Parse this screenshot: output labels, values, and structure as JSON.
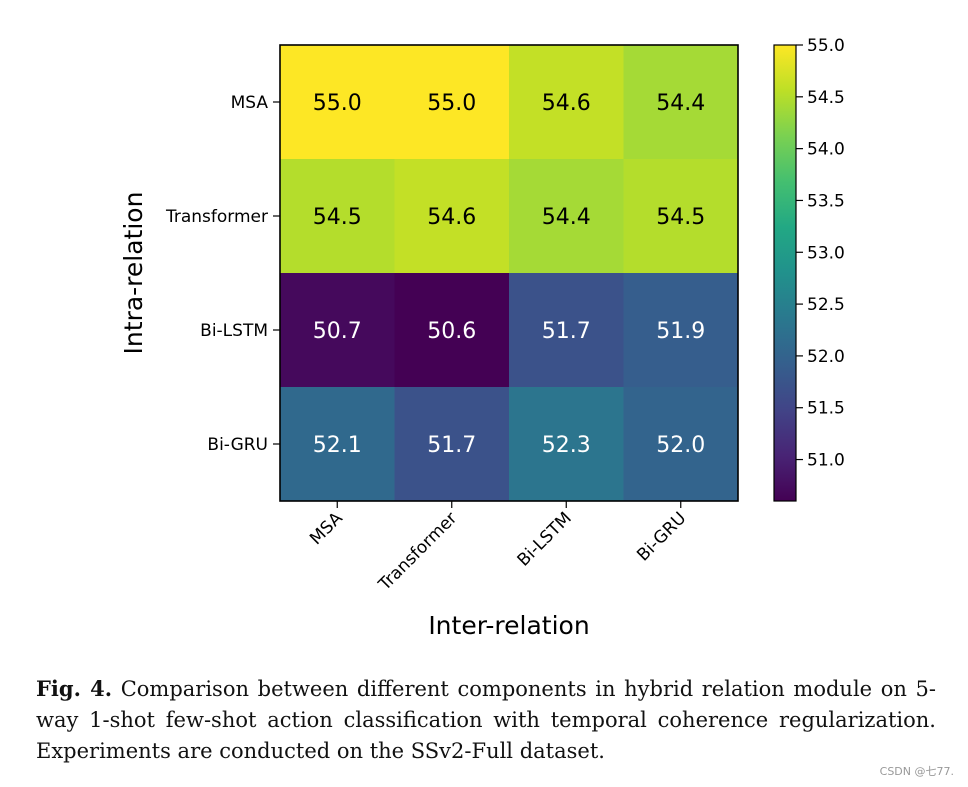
{
  "chart_data": {
    "type": "heatmap",
    "xlabel": "Inter-relation",
    "ylabel": "Intra-relation",
    "x_categories": [
      "MSA",
      "Transformer",
      "Bi-LSTM",
      "Bi-GRU"
    ],
    "y_categories": [
      "MSA",
      "Transformer",
      "Bi-LSTM",
      "Bi-GRU"
    ],
    "values": [
      [
        55.0,
        55.0,
        54.6,
        54.4
      ],
      [
        54.5,
        54.6,
        54.4,
        54.5
      ],
      [
        50.7,
        50.6,
        51.7,
        51.9
      ],
      [
        52.1,
        51.7,
        52.3,
        52.0
      ]
    ],
    "value_labels": [
      [
        "55.0",
        "55.0",
        "54.6",
        "54.4"
      ],
      [
        "54.5",
        "54.6",
        "54.4",
        "54.5"
      ],
      [
        "50.7",
        "50.6",
        "51.7",
        "51.9"
      ],
      [
        "52.1",
        "51.7",
        "52.3",
        "52.0"
      ]
    ],
    "colormap": "viridis",
    "colorbar": {
      "range": [
        50.6,
        55.0
      ],
      "ticks": [
        55.0,
        54.5,
        54.0,
        53.5,
        53.0,
        52.5,
        52.0,
        51.5,
        51.0
      ],
      "tick_labels": [
        "55.0",
        "54.5",
        "54.0",
        "53.5",
        "53.0",
        "52.5",
        "52.0",
        "51.5",
        "51.0"
      ]
    }
  },
  "caption": {
    "label": "Fig. 4.",
    "text": "Comparison between different components in hybrid relation module on 5-way 1-shot few-shot action classification with temporal coherence regularization. Experiments are conducted on the SSv2-Full dataset."
  },
  "watermark": "CSDN @七77."
}
